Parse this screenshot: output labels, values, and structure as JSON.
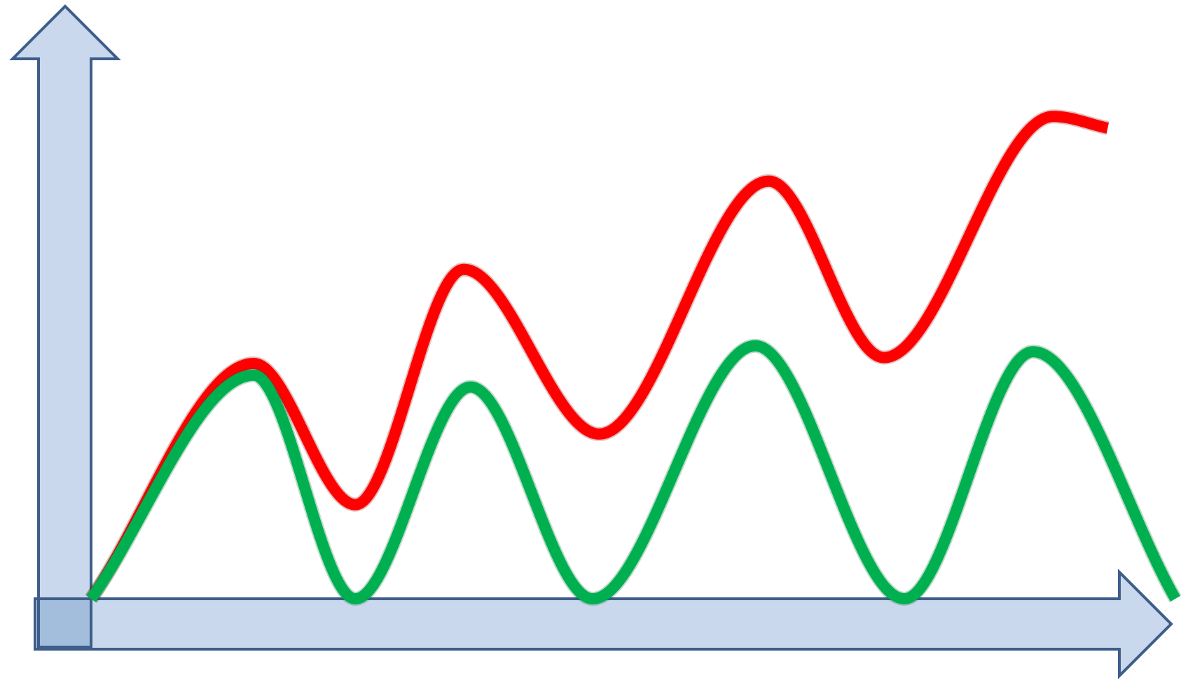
{
  "colors": {
    "axis_fill": "#c9d8ec",
    "axis_stroke": "#3e5e8a",
    "axis_overlap_fill": "#a3bddc",
    "background": "#ffffff"
  },
  "chart_data": {
    "type": "line",
    "title": "",
    "xlabel": "",
    "ylabel": "",
    "grid": false,
    "legend": "none",
    "xlim": [
      0,
      16
    ],
    "ylim": [
      0,
      10
    ],
    "series": [
      {
        "color": "#ff0000",
        "x": [
          0,
          2.4,
          3.9,
          5.5,
          7.5,
          10.0,
          11.7,
          14.2,
          15.0
        ],
        "y": [
          0.0,
          4.0,
          1.6,
          5.6,
          2.8,
          7.1,
          4.1,
          8.2,
          8.0
        ]
      },
      {
        "color": "#00b050",
        "x": [
          0,
          2.4,
          3.9,
          5.6,
          7.4,
          9.8,
          12.0,
          13.9,
          16.0
        ],
        "y": [
          0.0,
          3.8,
          0.0,
          3.6,
          0.0,
          4.3,
          0.0,
          4.2,
          0.0
        ]
      }
    ]
  }
}
